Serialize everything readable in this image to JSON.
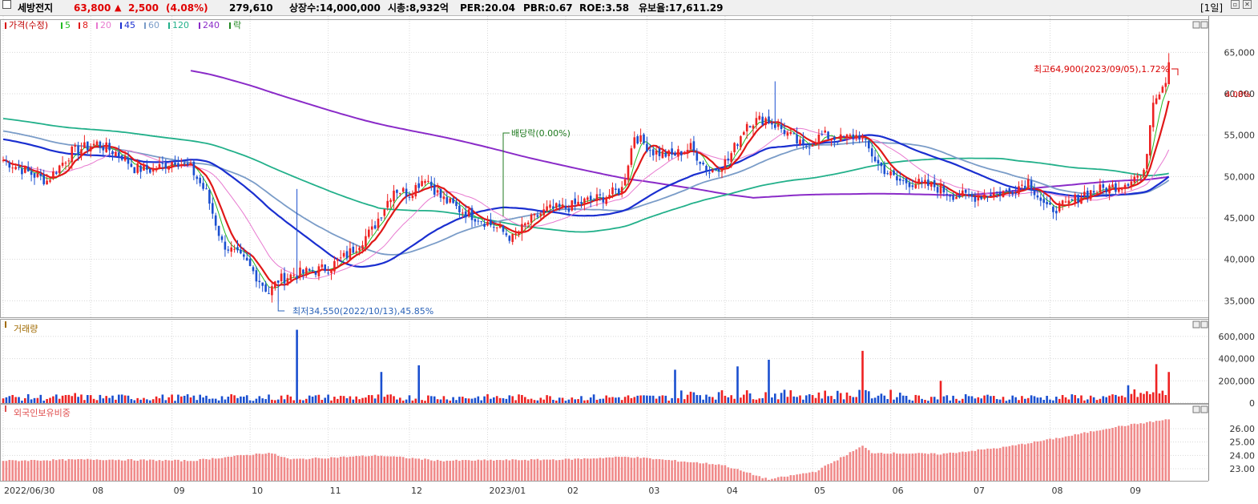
{
  "header": {
    "name": "세방전지",
    "price": "63,800",
    "change_arrow": "▲",
    "change": "2,500",
    "change_pct": "(4.08%)",
    "volume": "279,610",
    "shares": "상장수:14,000,000",
    "mcap": "시총:8,932억",
    "per": "PER:20.04",
    "pbr": "PBR:0.67",
    "roe": "ROE:3.58",
    "float": "유보율:17,611.29",
    "period": "[1일]"
  },
  "colors": {
    "up": "#ee2222",
    "down": "#1a4fd0",
    "ma5": "#22bb22",
    "ma8": "#e01818",
    "ma20": "#e87ad0",
    "ma45": "#1a2fd0",
    "ma60": "#7a9cc8",
    "ma120": "#22b08a",
    "ma240": "#8a2bc8"
  },
  "legend": {
    "price": "가격(수정)",
    "items": [
      {
        "label": "5",
        "color": "#22bb22"
      },
      {
        "label": "8",
        "color": "#e01818"
      },
      {
        "label": "20",
        "color": "#e87ad0"
      },
      {
        "label": "45",
        "color": "#1a2fd0"
      },
      {
        "label": "60",
        "color": "#7a9cc8"
      },
      {
        "label": "120",
        "color": "#22b08a"
      },
      {
        "label": "240",
        "color": "#8a2bc8"
      },
      {
        "label": "락",
        "color": "#228822"
      }
    ]
  },
  "annotations": {
    "high": "최고64,900(2023/09/05),1.72%",
    "low": "최저34,550(2022/10/13),45.85%",
    "dividend": "배당락(0.00%)",
    "last_price": "63,800",
    "last_pct": "4.08%"
  },
  "volume_panel": {
    "title": "거래량"
  },
  "foreign_panel": {
    "title": "외국인보유비중"
  },
  "chart_data": [
    {
      "type": "candlestick",
      "title": "가격(수정)",
      "ylim": [
        33000,
        69000
      ],
      "yticks": [
        35000,
        40000,
        45000,
        50000,
        55000,
        60000,
        65000
      ],
      "ytick_labels": [
        "35,000",
        "40,000",
        "45,000",
        "50,000",
        "55,000",
        "60,000",
        "65,000"
      ],
      "xtick_labels": [
        "2022/06/30",
        "08",
        "09",
        "10",
        "11",
        "12",
        "2023/01",
        "02",
        "03",
        "04",
        "05",
        "06",
        "07",
        "08",
        "09"
      ],
      "close_keypoints": [
        [
          0,
          52000
        ],
        [
          8,
          50500
        ],
        [
          14,
          49500
        ],
        [
          22,
          53000
        ],
        [
          30,
          54000
        ],
        [
          38,
          52500
        ],
        [
          42,
          51000
        ],
        [
          48,
          50800
        ],
        [
          55,
          52000
        ],
        [
          60,
          51000
        ],
        [
          65,
          48000
        ],
        [
          70,
          42000
        ],
        [
          78,
          39500
        ],
        [
          85,
          36000
        ],
        [
          88,
          37500
        ],
        [
          93,
          38200
        ],
        [
          98,
          38500
        ],
        [
          104,
          39000
        ],
        [
          110,
          40500
        ],
        [
          118,
          43500
        ],
        [
          125,
          48500
        ],
        [
          130,
          48000
        ],
        [
          135,
          50000
        ],
        [
          140,
          47500
        ],
        [
          146,
          46000
        ],
        [
          152,
          45000
        ],
        [
          158,
          43800
        ],
        [
          163,
          42500
        ],
        [
          168,
          44500
        ],
        [
          174,
          46000
        ],
        [
          180,
          46200
        ],
        [
          186,
          47000
        ],
        [
          192,
          47500
        ],
        [
          198,
          48500
        ],
        [
          202,
          55000
        ],
        [
          208,
          53000
        ],
        [
          214,
          52500
        ],
        [
          220,
          53500
        ],
        [
          226,
          50500
        ],
        [
          232,
          52000
        ],
        [
          238,
          56500
        ],
        [
          244,
          57000
        ],
        [
          250,
          55500
        ],
        [
          256,
          53500
        ],
        [
          262,
          55000
        ],
        [
          268,
          54500
        ],
        [
          274,
          55000
        ],
        [
          280,
          51500
        ],
        [
          286,
          49500
        ],
        [
          292,
          49200
        ],
        [
          298,
          48800
        ],
        [
          304,
          47800
        ],
        [
          310,
          47500
        ],
        [
          316,
          48000
        ],
        [
          322,
          48200
        ],
        [
          328,
          49500
        ],
        [
          334,
          46000
        ],
        [
          340,
          46500
        ],
        [
          346,
          48000
        ],
        [
          352,
          48500
        ],
        [
          358,
          49000
        ],
        [
          362,
          50000
        ],
        [
          365,
          50200
        ],
        [
          368,
          59500
        ],
        [
          372,
          61300
        ],
        [
          373,
          63800
        ]
      ],
      "high_marker": {
        "value": 64900,
        "date": "2023/09/05"
      },
      "low_marker": {
        "value": 34550,
        "date": "2022/10/13"
      },
      "ma": {
        "5": "moving average 5",
        "8": "moving average 8",
        "20": "moving average 20",
        "45": "moving average 45",
        "60": "moving average 60",
        "120": "moving average 120",
        "240": "moving average 240"
      }
    },
    {
      "type": "bar",
      "title": "거래량",
      "ylim": [
        0,
        700000
      ],
      "yticks": [
        0,
        200000,
        400000,
        600000
      ],
      "ytick_labels": [
        "0",
        "200,000",
        "400,000",
        "600,000"
      ],
      "spikes": [
        [
          23,
          90000
        ],
        [
          94,
          660000
        ],
        [
          121,
          280000
        ],
        [
          133,
          340000
        ],
        [
          215,
          300000
        ],
        [
          235,
          330000
        ],
        [
          245,
          390000
        ],
        [
          275,
          470000
        ],
        [
          300,
          200000
        ],
        [
          360,
          160000
        ],
        [
          369,
          350000
        ],
        [
          373,
          279610
        ]
      ],
      "base_volume": 50000
    },
    {
      "type": "bar",
      "title": "외국인보유비중",
      "ylim": [
        22.1,
        27.5
      ],
      "yticks": [
        23,
        24,
        25,
        26
      ],
      "ytick_labels": [
        "23.00",
        "24.00",
        "25.00",
        "26.00"
      ],
      "keypoints": [
        [
          0,
          23.6
        ],
        [
          30,
          23.7
        ],
        [
          60,
          23.6
        ],
        [
          85,
          24.2
        ],
        [
          92,
          23.7
        ],
        [
          120,
          24.0
        ],
        [
          140,
          23.6
        ],
        [
          180,
          23.7
        ],
        [
          200,
          23.9
        ],
        [
          230,
          23.3
        ],
        [
          245,
          22.2
        ],
        [
          260,
          22.8
        ],
        [
          275,
          24.7
        ],
        [
          278,
          24.2
        ],
        [
          300,
          24.1
        ],
        [
          320,
          24.6
        ],
        [
          340,
          25.4
        ],
        [
          355,
          26.1
        ],
        [
          373,
          26.7
        ]
      ]
    }
  ]
}
